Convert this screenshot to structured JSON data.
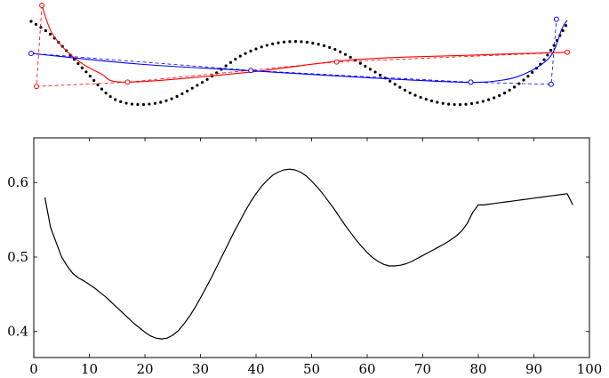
{
  "chart_data": [
    {
      "type": "line",
      "title": "",
      "series": [
        {
          "style": "dotted",
          "color": "#000000",
          "points": [
            [
              0,
              0.52
            ],
            [
              0.04,
              0.38
            ],
            [
              0.1,
              0.06
            ],
            [
              0.16,
              -0.22
            ],
            [
              0.24,
              -0.24
            ],
            [
              0.32,
              -0.05
            ],
            [
              0.4,
              0.22
            ],
            [
              0.48,
              0.33
            ],
            [
              0.56,
              0.27
            ],
            [
              0.64,
              0.05
            ],
            [
              0.72,
              -0.18
            ],
            [
              0.8,
              -0.26
            ],
            [
              0.88,
              -0.16
            ],
            [
              0.95,
              0.12
            ],
            [
              1.0,
              0.5
            ]
          ]
        },
        {
          "style": "solid",
          "color": "#ff0000",
          "points": [
            [
              0.02,
              0.67
            ],
            [
              0.04,
              0.4
            ],
            [
              0.08,
              0.18
            ],
            [
              0.13,
              0.03
            ],
            [
              0.18,
              -0.05
            ],
            [
              0.4,
              0.04
            ],
            [
              0.6,
              0.16
            ],
            [
              0.8,
              0.2
            ],
            [
              1.0,
              0.23
            ]
          ]
        },
        {
          "style": "solid",
          "color": "#0000ff",
          "points": [
            [
              0.0,
              0.22
            ],
            [
              0.2,
              0.12
            ],
            [
              0.4,
              0.06
            ],
            [
              0.6,
              0.0
            ],
            [
              0.8,
              -0.05
            ],
            [
              0.88,
              -0.03
            ],
            [
              0.93,
              0.05
            ],
            [
              0.97,
              0.2
            ],
            [
              0.99,
              0.45
            ],
            [
              1.0,
              0.53
            ]
          ]
        },
        {
          "style": "dashed",
          "color": "#ff0000",
          "points": [
            [
              0.02,
              0.67
            ],
            [
              0.01,
              -0.09
            ],
            [
              0.18,
              -0.05
            ],
            [
              0.57,
              0.14
            ],
            [
              1.0,
              0.23
            ]
          ]
        },
        {
          "style": "dashed",
          "color": "#0000ff",
          "points": [
            [
              0.0,
              0.22
            ],
            [
              0.41,
              0.06
            ],
            [
              0.82,
              -0.05
            ],
            [
              0.97,
              -0.07
            ],
            [
              0.98,
              0.54
            ]
          ]
        }
      ],
      "markers": [
        {
          "color": "#ff0000",
          "points": [
            [
              0.02,
              0.67
            ],
            [
              0.01,
              -0.09
            ],
            [
              0.18,
              -0.05
            ],
            [
              0.57,
              0.14
            ],
            [
              1.0,
              0.23
            ]
          ]
        },
        {
          "color": "#0000ff",
          "points": [
            [
              0.0,
              0.22
            ],
            [
              0.41,
              0.06
            ],
            [
              0.82,
              -0.05
            ],
            [
              0.97,
              -0.07
            ],
            [
              0.98,
              0.54
            ]
          ]
        }
      ]
    },
    {
      "type": "line",
      "title": "",
      "xlabel": "",
      "ylabel": "",
      "xlim": [
        0,
        100
      ],
      "ylim": [
        0.365,
        0.66
      ],
      "x_ticks": [
        0,
        10,
        20,
        30,
        40,
        50,
        60,
        70,
        80,
        90,
        100
      ],
      "y_ticks": [
        0.4,
        0.5,
        0.6
      ],
      "x_tick_labels": [
        "0",
        "10",
        "20",
        "30",
        "40",
        "50",
        "60",
        "70",
        "80",
        "90",
        "100"
      ],
      "y_tick_labels": [
        "0.4",
        "0.5",
        "0.6"
      ],
      "grid": false,
      "series": [
        {
          "color": "#000000",
          "x": [
            2,
            3,
            4,
            5,
            6,
            7,
            8,
            9,
            10,
            11,
            12,
            13,
            14,
            15,
            16,
            17,
            18,
            19,
            20,
            21,
            22,
            23,
            24,
            25,
            26,
            27,
            28,
            29,
            30,
            31,
            32,
            33,
            34,
            35,
            36,
            37,
            38,
            39,
            40,
            41,
            42,
            43,
            44,
            45,
            46,
            47,
            48,
            49,
            50,
            51,
            52,
            53,
            54,
            55,
            56,
            57,
            58,
            59,
            60,
            61,
            62,
            63,
            64,
            65,
            66,
            67,
            68,
            69,
            70,
            71,
            72,
            73,
            74,
            75,
            76,
            77,
            78,
            79,
            80,
            81,
            82,
            83,
            84,
            85,
            86,
            87,
            88,
            89,
            90,
            91,
            92,
            93,
            94,
            95,
            96,
            97
          ],
          "y": [
            0.58,
            0.54,
            0.52,
            0.5,
            0.488,
            0.478,
            0.472,
            0.468,
            0.463,
            0.458,
            0.452,
            0.446,
            0.439,
            0.432,
            0.425,
            0.418,
            0.411,
            0.405,
            0.399,
            0.394,
            0.391,
            0.39,
            0.391,
            0.395,
            0.401,
            0.41,
            0.42,
            0.432,
            0.445,
            0.459,
            0.473,
            0.488,
            0.503,
            0.518,
            0.533,
            0.547,
            0.561,
            0.574,
            0.585,
            0.595,
            0.603,
            0.61,
            0.614,
            0.617,
            0.618,
            0.617,
            0.614,
            0.609,
            0.602,
            0.594,
            0.585,
            0.575,
            0.565,
            0.554,
            0.543,
            0.533,
            0.523,
            0.514,
            0.506,
            0.499,
            0.494,
            0.49,
            0.488,
            0.488,
            0.489,
            0.491,
            0.494,
            0.498,
            0.502,
            0.506,
            0.51,
            0.514,
            0.518,
            0.523,
            0.528,
            0.535,
            0.545,
            0.56,
            0.57,
            0.57,
            0.571,
            0.572,
            0.573,
            0.574,
            0.575,
            0.576,
            0.577,
            0.578,
            0.579,
            0.58,
            0.581,
            0.582,
            0.583,
            0.584,
            0.585,
            0.57
          ]
        }
      ]
    }
  ]
}
